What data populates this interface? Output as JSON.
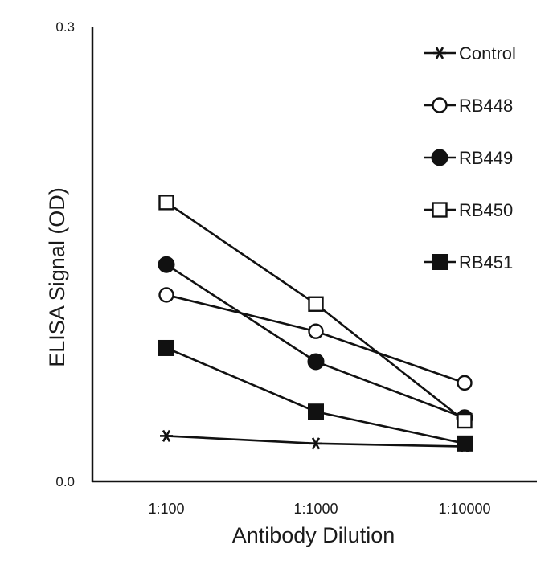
{
  "chart_data": {
    "type": "line",
    "title": "",
    "xlabel": "Antibody Dilution",
    "ylabel": "ELISA Signal (OD)",
    "categories": [
      "1:100",
      "1:1000",
      "1:10000"
    ],
    "ylim": [
      0,
      0.3
    ],
    "y_ticks": [
      "0.0",
      "0.3"
    ],
    "grid": false,
    "legend_position": "top-right",
    "series": [
      {
        "name": "Control",
        "marker": "asterisk",
        "values": [
          0.03,
          0.025,
          0.023
        ]
      },
      {
        "name": "RB448",
        "marker": "circle-open",
        "values": [
          0.123,
          0.099,
          0.065
        ]
      },
      {
        "name": "RB449",
        "marker": "circle-filled",
        "values": [
          0.143,
          0.079,
          0.042
        ]
      },
      {
        "name": "RB450",
        "marker": "square-open",
        "values": [
          0.184,
          0.117,
          0.04
        ]
      },
      {
        "name": "RB451",
        "marker": "square-filled",
        "values": [
          0.088,
          0.046,
          0.025
        ]
      }
    ]
  }
}
